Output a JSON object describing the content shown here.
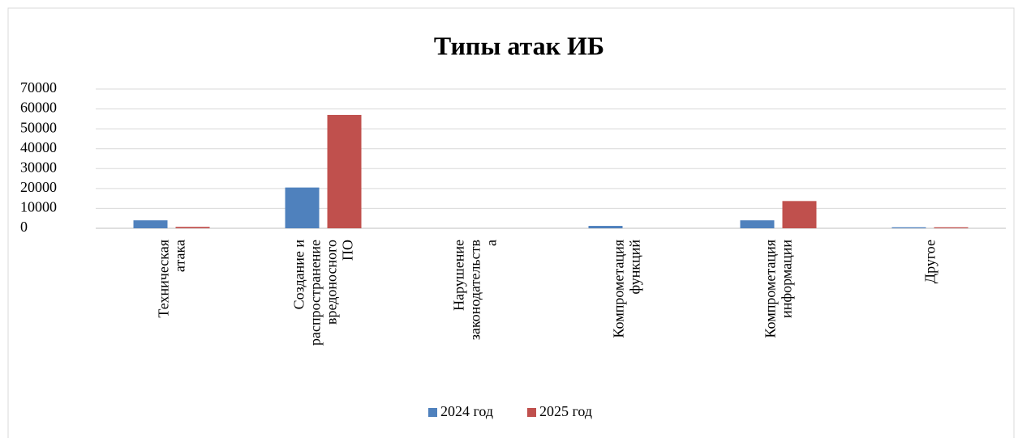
{
  "chart_data": {
    "type": "bar",
    "title": "Типы атак ИБ",
    "categories": [
      "Техническая атака",
      "Создание и распространение вредоносного ПО",
      "Нарушение законодательства",
      "Компрометация функций",
      "Компрометация информации",
      "Другое"
    ],
    "series": [
      {
        "name": "2024 год",
        "color": "#4f81bd",
        "values": [
          4000,
          20500,
          0,
          1200,
          4000,
          500
        ]
      },
      {
        "name": "2025 год",
        "color": "#c0504d",
        "values": [
          700,
          57000,
          0,
          0,
          13700,
          500
        ]
      }
    ],
    "ylim": [
      0,
      70000
    ],
    "yticks": [
      0,
      10000,
      20000,
      30000,
      40000,
      50000,
      60000,
      70000
    ],
    "grid": true,
    "legend": "bottom"
  }
}
